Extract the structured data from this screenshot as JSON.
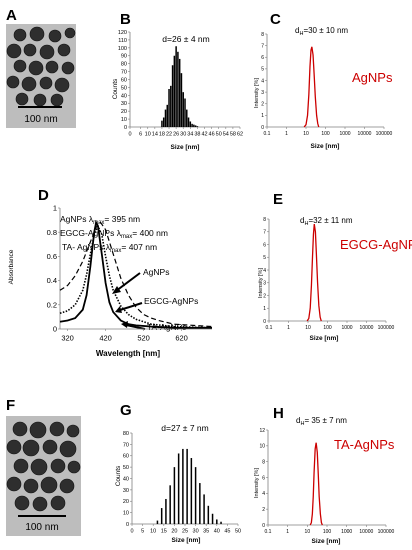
{
  "panel_letters": [
    "A",
    "B",
    "C",
    "D",
    "E",
    "F",
    "G",
    "H"
  ],
  "tem_a": {
    "scale_label": "100 nm"
  },
  "tem_f": {
    "scale_label": "100 nm"
  },
  "colors": {
    "red": "#cc0000",
    "black": "#000000",
    "axis": "#7f7f7f"
  },
  "chart_data": [
    {
      "panel": "B",
      "type": "bar",
      "annotation": "d=26 ± 4 nm",
      "xlabel": "Size [nm]",
      "ylabel": "Counts",
      "xticks": [
        0,
        6,
        10,
        14,
        18,
        22,
        26,
        30,
        34,
        38,
        42,
        46,
        50,
        54,
        58,
        62
      ],
      "yticks": [
        0,
        10,
        20,
        30,
        40,
        50,
        60,
        70,
        80,
        90,
        100,
        110,
        120
      ],
      "ylim": [
        0,
        120
      ],
      "xlim": [
        0,
        62
      ],
      "x": [
        18,
        19,
        20,
        21,
        22,
        23,
        24,
        25,
        26,
        27,
        28,
        29,
        30,
        31,
        32,
        33,
        34,
        35,
        36,
        37,
        38
      ],
      "values": [
        8,
        12,
        22,
        28,
        48,
        52,
        78,
        90,
        102,
        95,
        86,
        68,
        44,
        36,
        22,
        12,
        7,
        4,
        3,
        2,
        1
      ]
    },
    {
      "panel": "C",
      "type": "line",
      "annotation_prefix": "d",
      "annotation_sub": "H",
      "annotation_suffix": "=30 ± 10 nm",
      "series_label": "AgNPs",
      "xlabel": "Size [nm]",
      "ylabel": "Intensity [%]",
      "xticks": [
        "0.1",
        "1",
        "10",
        "100",
        "1000",
        "10000",
        "100000"
      ],
      "yticks": [
        0,
        1,
        2,
        3,
        4,
        5,
        6,
        7,
        8
      ],
      "ylim": [
        0,
        8
      ],
      "xscale": "log",
      "x": [
        8,
        10,
        12,
        14,
        16,
        18,
        20,
        23,
        26,
        30,
        35,
        40,
        45
      ],
      "values": [
        0,
        0.2,
        1.0,
        2.8,
        5.2,
        6.6,
        6.9,
        6.2,
        4.6,
        2.6,
        1.0,
        0.3,
        0
      ]
    },
    {
      "panel": "D",
      "type": "line",
      "legend_lines": [
        {
          "prefix": "AgNPs ",
          "lambda": "λ",
          "sub": "max",
          "suffix": "= 395 nm"
        },
        {
          "prefix": "EGCG-AgNPs ",
          "lambda": "λ",
          "sub": "max",
          "suffix": "= 400 nm"
        },
        {
          "prefix": "TA- AgNPs ",
          "lambda": "λ",
          "sub": "max",
          "suffix": "= 407 nm"
        }
      ],
      "xlabel": "Wavelength [nm]",
      "ylabel": "Absorbance",
      "xticks": [
        320,
        420,
        520,
        620
      ],
      "yticks": [
        0,
        0.2,
        0.4,
        0.6,
        0.8,
        1
      ],
      "xlim": [
        300,
        700
      ],
      "ylim": [
        0,
        1
      ],
      "series": [
        {
          "name": "AgNPs",
          "x": [
            300,
            320,
            340,
            360,
            370,
            380,
            390,
            395,
            400,
            410,
            420,
            430,
            440,
            460,
            480,
            500,
            540,
            600,
            700
          ],
          "values": [
            0.06,
            0.07,
            0.09,
            0.16,
            0.28,
            0.52,
            0.8,
            0.88,
            0.85,
            0.62,
            0.38,
            0.22,
            0.14,
            0.07,
            0.04,
            0.03,
            0.02,
            0.01,
            0.01
          ]
        },
        {
          "name": "EGCG-AgNPs",
          "x": [
            300,
            320,
            340,
            360,
            370,
            380,
            390,
            400,
            410,
            420,
            430,
            440,
            460,
            480,
            500,
            540,
            600,
            700
          ],
          "values": [
            0.13,
            0.15,
            0.2,
            0.32,
            0.45,
            0.62,
            0.78,
            0.85,
            0.78,
            0.6,
            0.44,
            0.32,
            0.19,
            0.12,
            0.08,
            0.04,
            0.02,
            0.01
          ]
        },
        {
          "name": "TA-AgNPs",
          "x": [
            300,
            320,
            340,
            360,
            380,
            395,
            407,
            420,
            440,
            460,
            480,
            500,
            520,
            540,
            560,
            600,
            650,
            700
          ],
          "values": [
            0.32,
            0.36,
            0.44,
            0.56,
            0.72,
            0.84,
            0.88,
            0.82,
            0.62,
            0.42,
            0.28,
            0.18,
            0.12,
            0.09,
            0.07,
            0.04,
            0.03,
            0.02
          ]
        }
      ],
      "callouts": [
        "AgNPs",
        "EGCG-AgNPs",
        "TA-AgNPs"
      ]
    },
    {
      "panel": "E",
      "type": "line",
      "annotation_prefix": "d",
      "annotation_sub": "H",
      "annotation_suffix": "=32 ± 11 nm",
      "series_label": "EGCG-AgNPs",
      "xlabel": "Size [nm]",
      "ylabel": "Intensity [%]",
      "xticks": [
        "0.1",
        "1",
        "10",
        "100",
        "1000",
        "10000",
        "100000"
      ],
      "yticks": [
        0,
        1,
        2,
        3,
        4,
        5,
        6,
        7,
        8
      ],
      "ylim": [
        0,
        8
      ],
      "xscale": "log",
      "x": [
        9,
        11,
        13,
        15,
        17,
        19,
        21,
        24,
        27,
        31,
        36,
        42,
        48
      ],
      "values": [
        0,
        0.2,
        1.0,
        2.8,
        5.0,
        6.8,
        7.6,
        7.0,
        5.2,
        3.0,
        1.2,
        0.3,
        0
      ]
    },
    {
      "panel": "G",
      "type": "bar",
      "annotation": "d=27 ± 7 nm",
      "xlabel": "Size [nm]",
      "ylabel": "Counts",
      "xticks": [
        0,
        5,
        10,
        15,
        20,
        25,
        30,
        35,
        40,
        45,
        50
      ],
      "yticks": [
        0,
        10,
        20,
        30,
        40,
        50,
        60,
        70,
        80
      ],
      "ylim": [
        0,
        80
      ],
      "xlim": [
        0,
        50
      ],
      "x": [
        12,
        14,
        16,
        18,
        20,
        22,
        24,
        26,
        28,
        30,
        32,
        34,
        36,
        38,
        40,
        42
      ],
      "values": [
        3,
        14,
        22,
        34,
        50,
        62,
        66,
        66,
        58,
        50,
        36,
        26,
        16,
        9,
        4,
        2
      ]
    },
    {
      "panel": "H",
      "type": "line",
      "annotation_prefix": "d",
      "annotation_sub": "H",
      "annotation_suffix": "= 35 ± 7 nm",
      "series_label": "TA-AgNPs",
      "xlabel": "Size [nm]",
      "ylabel": "Intensity [%]",
      "xticks": [
        "0.1",
        "1",
        "10",
        "100",
        "1000",
        "10000",
        "100000"
      ],
      "yticks": [
        0,
        2,
        4,
        6,
        8,
        10,
        12
      ],
      "ylim": [
        0,
        12
      ],
      "xscale": "log",
      "x": [
        14,
        16,
        18,
        20,
        22,
        25,
        28,
        32,
        36,
        40,
        46,
        52,
        58
      ],
      "values": [
        0,
        0.3,
        1.4,
        3.6,
        6.6,
        9.6,
        10.4,
        9.2,
        6.4,
        3.6,
        1.4,
        0.3,
        0
      ]
    }
  ]
}
